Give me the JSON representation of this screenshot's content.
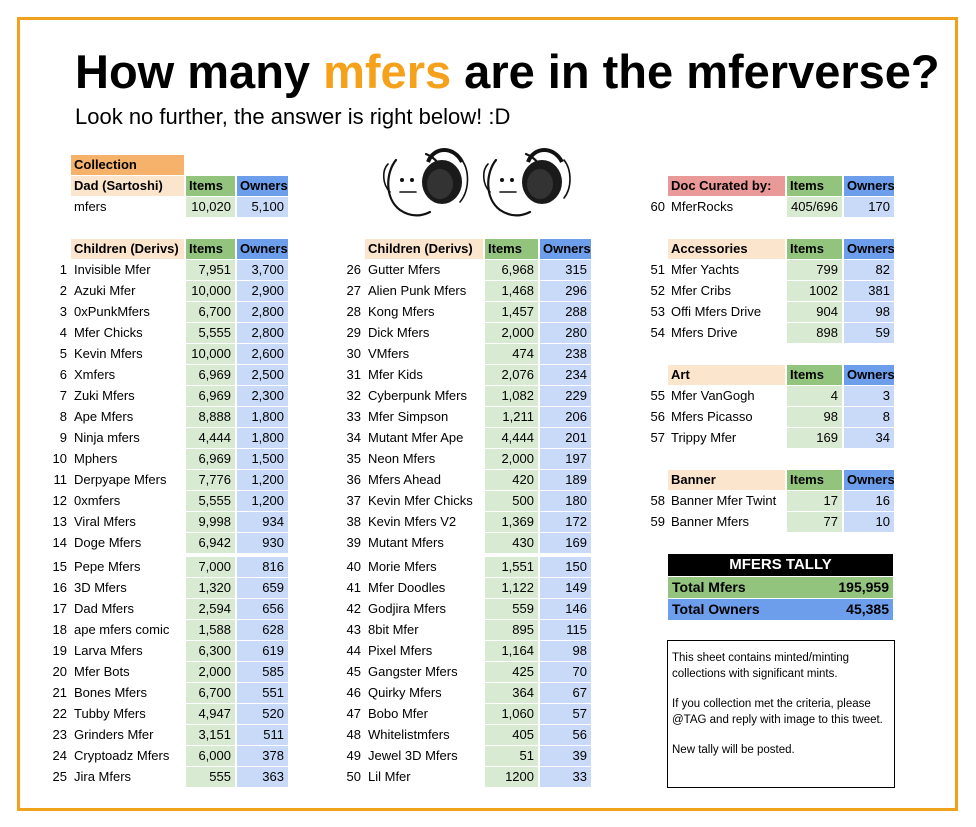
{
  "title": {
    "pre": "How many ",
    "highlight": "mfers",
    "post": " are in the mferverse?"
  },
  "subtitle": "Look no further, the answer is right below! :D",
  "parent": {
    "section_label": "Collection",
    "header": "Dad (Sartoshi)",
    "items_label": "Items",
    "owners_label": "Owners",
    "row": {
      "name": "mfers",
      "items": "10,020",
      "owners": "5,100"
    }
  },
  "children_header": {
    "label": "Children (Derivs)",
    "items": "Items",
    "owners": "Owners"
  },
  "children_col1": [
    {
      "n": "1",
      "name": "Invisible Mfer",
      "items": "7,951",
      "owners": "3,700"
    },
    {
      "n": "2",
      "name": "Azuki Mfer",
      "items": "10,000",
      "owners": "2,900"
    },
    {
      "n": "3",
      "name": "0xPunkMfers",
      "items": "6,700",
      "owners": "2,800"
    },
    {
      "n": "4",
      "name": "Mfer Chicks",
      "items": "5,555",
      "owners": "2,800"
    },
    {
      "n": "5",
      "name": "Kevin Mfers",
      "items": "10,000",
      "owners": "2,600"
    },
    {
      "n": "6",
      "name": "Xmfers",
      "items": "6,969",
      "owners": "2,500"
    },
    {
      "n": "7",
      "name": "Zuki Mfers",
      "items": "6,969",
      "owners": "2,300"
    },
    {
      "n": "8",
      "name": "Ape Mfers",
      "items": "8,888",
      "owners": "1,800"
    },
    {
      "n": "9",
      "name": "Ninja mfers",
      "items": "4,444",
      "owners": "1,800"
    },
    {
      "n": "10",
      "name": "Mphers",
      "items": "6,969",
      "owners": "1,500"
    },
    {
      "n": "11",
      "name": "Derpyape Mfers",
      "items": "7,776",
      "owners": "1,200"
    },
    {
      "n": "12",
      "name": "0xmfers",
      "items": "5,555",
      "owners": "1,200"
    },
    {
      "n": "13",
      "name": "Viral Mfers",
      "items": "9,998",
      "owners": "934"
    },
    {
      "n": "14",
      "name": "Doge Mfers",
      "items": "6,942",
      "owners": "930"
    },
    {
      "n": "15",
      "name": "Pepe Mfers",
      "items": "7,000",
      "owners": "816"
    },
    {
      "n": "16",
      "name": "3D Mfers",
      "items": "1,320",
      "owners": "659"
    },
    {
      "n": "17",
      "name": "Dad Mfers",
      "items": "2,594",
      "owners": "656"
    },
    {
      "n": "18",
      "name": "ape mfers comic",
      "items": "1,588",
      "owners": "628"
    },
    {
      "n": "19",
      "name": "Larva Mfers",
      "items": "6,300",
      "owners": "619"
    },
    {
      "n": "20",
      "name": "Mfer Bots",
      "items": "2,000",
      "owners": "585"
    },
    {
      "n": "21",
      "name": "Bones Mfers",
      "items": "6,700",
      "owners": "551"
    },
    {
      "n": "22",
      "name": "Tubby Mfers",
      "items": "4,947",
      "owners": "520"
    },
    {
      "n": "23",
      "name": "Grinders Mfer",
      "items": "3,151",
      "owners": "511"
    },
    {
      "n": "24",
      "name": "Cryptoadz Mfers",
      "items": "6,000",
      "owners": "378"
    },
    {
      "n": "25",
      "name": "Jira Mfers",
      "items": "555",
      "owners": "363"
    }
  ],
  "children_col2": [
    {
      "n": "26",
      "name": "Gutter Mfers",
      "items": "6,968",
      "owners": "315"
    },
    {
      "n": "27",
      "name": "Alien Punk Mfers",
      "items": "1,468",
      "owners": "296"
    },
    {
      "n": "28",
      "name": "Kong Mfers",
      "items": "1,457",
      "owners": "288"
    },
    {
      "n": "29",
      "name": "Dick Mfers",
      "items": "2,000",
      "owners": "280"
    },
    {
      "n": "30",
      "name": "VMfers",
      "items": "474",
      "owners": "238"
    },
    {
      "n": "31",
      "name": "Mfer Kids",
      "items": "2,076",
      "owners": "234"
    },
    {
      "n": "32",
      "name": "Cyberpunk Mfers",
      "items": "1,082",
      "owners": "229"
    },
    {
      "n": "33",
      "name": "Mfer Simpson",
      "items": "1,211",
      "owners": "206"
    },
    {
      "n": "34",
      "name": "Mutant Mfer Ape",
      "items": "4,444",
      "owners": "201"
    },
    {
      "n": "35",
      "name": "Neon Mfers",
      "items": "2,000",
      "owners": "197"
    },
    {
      "n": "36",
      "name": "Mfers Ahead",
      "items": "420",
      "owners": "189"
    },
    {
      "n": "37",
      "name": "Kevin Mfer Chicks",
      "items": "500",
      "owners": "180"
    },
    {
      "n": "38",
      "name": "Kevin Mfers V2",
      "items": "1,369",
      "owners": "172"
    },
    {
      "n": "39",
      "name": "Mutant Mfers",
      "items": "430",
      "owners": "169"
    },
    {
      "n": "40",
      "name": "Morie Mfers",
      "items": "1,551",
      "owners": "150"
    },
    {
      "n": "41",
      "name": "Mfer Doodles",
      "items": "1,122",
      "owners": "149"
    },
    {
      "n": "42",
      "name": "Godjira Mfers",
      "items": "559",
      "owners": "146"
    },
    {
      "n": "43",
      "name": "8bit Mfer",
      "items": "895",
      "owners": "115"
    },
    {
      "n": "44",
      "name": "Pixel Mfers",
      "items": "1,164",
      "owners": "98"
    },
    {
      "n": "45",
      "name": "Gangster Mfers",
      "items": "425",
      "owners": "70"
    },
    {
      "n": "46",
      "name": "Quirky Mfers",
      "items": "364",
      "owners": "67"
    },
    {
      "n": "47",
      "name": "Bobo Mfer",
      "items": "1,060",
      "owners": "57"
    },
    {
      "n": "48",
      "name": "Whitelistmfers",
      "items": "405",
      "owners": "56"
    },
    {
      "n": "49",
      "name": "Jewel 3D Mfers",
      "items": "51",
      "owners": "39"
    },
    {
      "n": "50",
      "name": "Lil Mfer",
      "items": "1200",
      "owners": "33"
    }
  ],
  "doc_curated": {
    "header": "Doc Curated by:",
    "items_label": "Items",
    "owners_label": "Owners",
    "rows": [
      {
        "n": "60",
        "name": "MferRocks",
        "items": "405/696",
        "owners": "170"
      }
    ]
  },
  "accessories": {
    "header": "Accessories",
    "items_label": "Items",
    "owners_label": "Owners",
    "rows": [
      {
        "n": "51",
        "name": "Mfer Yachts",
        "items": "799",
        "owners": "82"
      },
      {
        "n": "52",
        "name": "Mfer Cribs",
        "items": "1002",
        "owners": "381"
      },
      {
        "n": "53",
        "name": "Offi Mfers Drive",
        "items": "904",
        "owners": "98"
      },
      {
        "n": "54",
        "name": "Mfers Drive",
        "items": "898",
        "owners": "59"
      }
    ]
  },
  "art": {
    "header": "Art",
    "items_label": "Items",
    "owners_label": "Owners",
    "rows": [
      {
        "n": "55",
        "name": "Mfer VanGogh",
        "items": "4",
        "owners": "3"
      },
      {
        "n": "56",
        "name": "Mfers Picasso",
        "items": "98",
        "owners": "8"
      },
      {
        "n": "57",
        "name": "Trippy Mfer",
        "items": "169",
        "owners": "34"
      }
    ]
  },
  "banner": {
    "header": "Banner",
    "items_label": "Items",
    "owners_label": "Owners",
    "rows": [
      {
        "n": "58",
        "name": "Banner Mfer Twint",
        "items": "17",
        "owners": "16"
      },
      {
        "n": "59",
        "name": "Banner Mfers",
        "items": "77",
        "owners": "10"
      }
    ]
  },
  "tally": {
    "header": "MFERS TALLY",
    "total_mfers_label": "Total Mfers",
    "total_mfers": "195,959",
    "total_owners_label": "Total Owners",
    "total_owners": "45,385"
  },
  "note": {
    "p1": "This sheet contains minted/minting collections with significant mints.",
    "p2": "If you collection met the criteria, please @TAG and reply with image to this tweet.",
    "p3": "New tally will be posted."
  },
  "colors": {
    "frame": "#f0a21d",
    "highlight": "#f5a11c",
    "items_header": "#93c47d",
    "owners_header": "#6d9eeb",
    "items_cell": "#d9ead3",
    "owners_cell": "#c9daf8",
    "section_header": "#fce5cd",
    "collection_header": "#f6b26b",
    "doc_header": "#ea9999"
  }
}
